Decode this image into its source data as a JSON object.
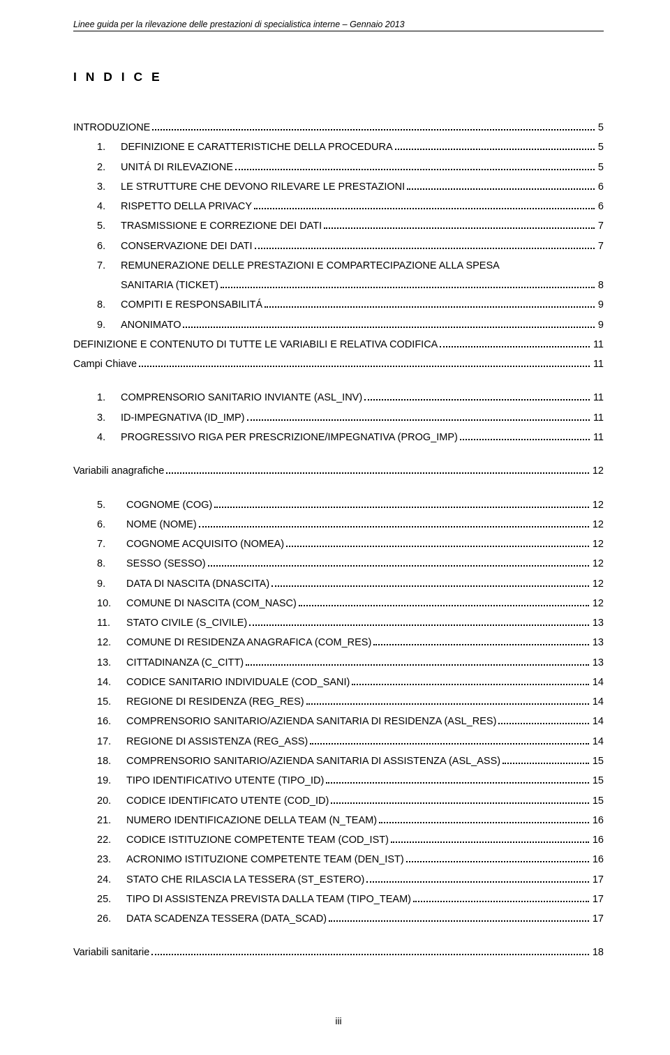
{
  "header": "Linee guida per la rilevazione delle prestazioni di specialistica interne – Gennaio 2013",
  "title": "I N D I C E",
  "footer_page": "iii",
  "toc": {
    "intro": {
      "label": "INTRODUZIONE",
      "page": "5"
    },
    "main": [
      {
        "num": "1.",
        "label": "DEFINIZIONE E CARATTERISTICHE DELLA PROCEDURA",
        "page": "5"
      },
      {
        "num": "2.",
        "label": "UNITÁ DI RILEVAZIONE",
        "page": "5"
      },
      {
        "num": "3.",
        "label": "LE STRUTTURE CHE DEVONO RILEVARE LE PRESTAZIONI",
        "page": "6"
      },
      {
        "num": "4.",
        "label": "RISPETTO DELLA PRIVACY",
        "page": "6"
      },
      {
        "num": "5.",
        "label": "TRASMISSIONE E CORREZIONE DEI DATI",
        "page": "7"
      },
      {
        "num": "6.",
        "label": "CONSERVAZIONE DEI DATI",
        "page": "7"
      },
      {
        "num": "7.",
        "label_a": "REMUNERAZIONE DELLE PRESTAZIONI E COMPARTECIPAZIONE ALLA SPESA",
        "label_b": "SANITARIA (TICKET)",
        "page": "8"
      },
      {
        "num": "8.",
        "label": "COMPITI E RESPONSABILITÁ",
        "page": "9"
      },
      {
        "num": "9.",
        "label": "ANONIMATO",
        "page": "9"
      }
    ],
    "def_heading": {
      "label": "DEFINIZIONE E CONTENUTO DI TUTTE LE VARIABILI E RELATIVA CODIFICA",
      "page": "11"
    },
    "campi_heading": {
      "label": "Campi Chiave",
      "page": "11"
    },
    "campi": [
      {
        "num": "1.",
        "label": "COMPRENSORIO SANITARIO INVIANTE (ASL_INV)",
        "page": "11"
      },
      {
        "num": "3.",
        "label": "ID-IMPEGNATIVA (ID_IMP)",
        "page": "11"
      },
      {
        "num": "4.",
        "label": "PROGRESSIVO RIGA PER PRESCRIZIONE/IMPEGNATIVA (PROG_IMP)",
        "page": "11"
      }
    ],
    "var_anag_heading": {
      "label": "Variabili anagrafiche",
      "page": "12"
    },
    "var_anag": [
      {
        "num": "5.",
        "label": "COGNOME (COG)",
        "page": "12"
      },
      {
        "num": "6.",
        "label": "NOME (NOME)",
        "page": "12"
      },
      {
        "num": "7.",
        "label": "COGNOME ACQUISITO (NOMEA)",
        "page": "12"
      },
      {
        "num": "8.",
        "label": "SESSO (SESSO)",
        "page": "12"
      },
      {
        "num": "9.",
        "label": "DATA DI NASCITA (DNASCITA)",
        "page": "12"
      },
      {
        "num": "10.",
        "label": "COMUNE DI NASCITA (COM_NASC)",
        "page": "12"
      },
      {
        "num": "11.",
        "label": "STATO CIVILE (S_CIVILE)",
        "page": "13"
      },
      {
        "num": "12.",
        "label": "COMUNE DI RESIDENZA ANAGRAFICA (COM_RES)",
        "page": "13"
      },
      {
        "num": "13.",
        "label": "CITTADINANZA (C_CITT)",
        "page": "13"
      },
      {
        "num": "14.",
        "label": "CODICE SANITARIO INDIVIDUALE (COD_SANI)",
        "page": "14"
      },
      {
        "num": "15.",
        "label": "REGIONE DI RESIDENZA (REG_RES)",
        "page": "14"
      },
      {
        "num": "16.",
        "label": "COMPRENSORIO SANITARIO/AZIENDA SANITARIA DI RESIDENZA (ASL_RES)",
        "page": "14"
      },
      {
        "num": "17.",
        "label": "REGIONE DI ASSISTENZA (REG_ASS)",
        "page": "14"
      },
      {
        "num": "18.",
        "label": "COMPRENSORIO SANITARIO/AZIENDA SANITARIA DI ASSISTENZA (ASL_ASS)",
        "page": "15"
      },
      {
        "num": "19.",
        "label": "TIPO IDENTIFICATIVO UTENTE (TIPO_ID)",
        "page": "15"
      },
      {
        "num": "20.",
        "label": "CODICE IDENTIFICATO UTENTE (COD_ID)",
        "page": "15"
      },
      {
        "num": "21.",
        "label": "NUMERO IDENTIFICAZIONE DELLA TEAM (N_TEAM)",
        "page": "16"
      },
      {
        "num": "22.",
        "label": "CODICE ISTITUZIONE COMPETENTE TEAM (COD_IST)",
        "page": "16"
      },
      {
        "num": "23.",
        "label": "ACRONIMO ISTITUZIONE COMPETENTE TEAM (DEN_IST)",
        "page": "16"
      },
      {
        "num": "24.",
        "label": "STATO CHE RILASCIA LA TESSERA (ST_ESTERO)",
        "page": "17"
      },
      {
        "num": "25.",
        "label": "TIPO DI ASSISTENZA PREVISTA DALLA TEAM (TIPO_TEAM)",
        "page": "17"
      },
      {
        "num": "26.",
        "label": "DATA SCADENZA TESSERA (DATA_SCAD)",
        "page": "17"
      }
    ],
    "var_san_heading": {
      "label": "Variabili sanitarie",
      "page": "18"
    }
  }
}
